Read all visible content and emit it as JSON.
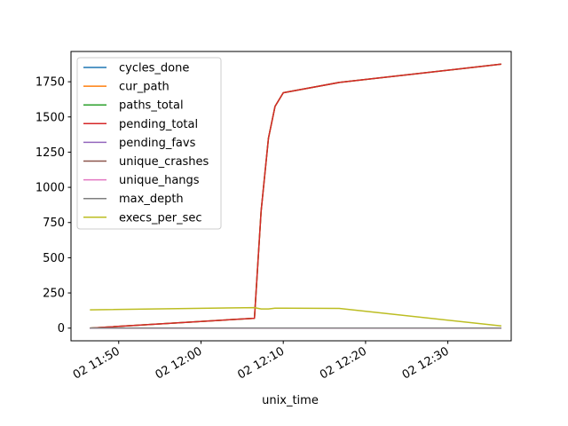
{
  "chart_data": {
    "type": "line",
    "xlabel": "unix_time",
    "ylabel": "",
    "title": "",
    "x_tick_labels": [
      "02 11:50",
      "02 12:00",
      "02 12:10",
      "02 12:20",
      "02 12:30"
    ],
    "x_ticks_minutes": [
      10,
      20,
      30,
      40,
      50
    ],
    "xlim_minutes": [
      4.2,
      57.7
    ],
    "x_axis_origin": "02 11:40",
    "y_ticks": [
      0,
      250,
      500,
      750,
      1000,
      1250,
      1500,
      1750
    ],
    "ylim": [
      -90,
      1965
    ],
    "grid": false,
    "legend_position": "top-left",
    "x_minutes": [
      6.5,
      26.5,
      27.3,
      28.2,
      29.0,
      30.0,
      36.8,
      56.5
    ],
    "series": [
      {
        "name": "cycles_done",
        "color": "#1f77b4",
        "values": [
          0,
          0,
          0,
          0,
          0,
          0,
          0,
          0
        ]
      },
      {
        "name": "cur_path",
        "color": "#ff7f0e",
        "values": [
          0,
          70,
          830,
          1350,
          1575,
          1672,
          1745,
          1875
        ]
      },
      {
        "name": "paths_total",
        "color": "#2ca02c",
        "values": [
          0,
          70,
          830,
          1350,
          1575,
          1672,
          1745,
          1875
        ]
      },
      {
        "name": "pending_total",
        "color": "#d62728",
        "values": [
          0,
          70,
          830,
          1350,
          1575,
          1672,
          1745,
          1875
        ]
      },
      {
        "name": "pending_favs",
        "color": "#9467bd",
        "values": [
          0,
          0,
          0,
          0,
          0,
          0,
          0,
          0
        ]
      },
      {
        "name": "unique_crashes",
        "color": "#8c564b",
        "values": [
          0,
          0,
          0,
          0,
          0,
          0,
          0,
          0
        ]
      },
      {
        "name": "unique_hangs",
        "color": "#e377c2",
        "values": [
          0,
          0,
          0,
          0,
          0,
          0,
          0,
          0
        ]
      },
      {
        "name": "max_depth",
        "color": "#7f7f7f",
        "values": [
          1,
          1,
          1,
          1,
          1,
          1,
          1,
          1
        ]
      },
      {
        "name": "execs_per_sec",
        "color": "#bcbd22",
        "values": [
          130,
          146,
          136,
          136,
          142,
          142,
          140,
          15
        ]
      }
    ]
  }
}
